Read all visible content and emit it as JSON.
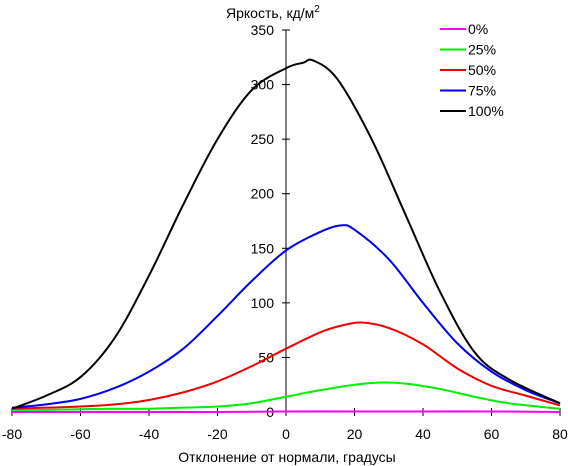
{
  "chart_data": {
    "type": "line",
    "title": "",
    "ylabel": "Яркость, кд/м",
    "ylabel_sup": "2",
    "xlabel": "Отклонение от нормали, градусы",
    "xlim": [
      -80,
      80
    ],
    "ylim": [
      0,
      350
    ],
    "xticks": [
      -80,
      -60,
      -40,
      -20,
      0,
      20,
      40,
      60,
      80
    ],
    "yticks": [
      0,
      50,
      100,
      150,
      200,
      250,
      300,
      350
    ],
    "grid": false,
    "legend_position": "top-right",
    "series": [
      {
        "name": "0%",
        "color": "#ff00ff",
        "x": [
          -80,
          -60,
          -40,
          -20,
          0,
          20,
          40,
          60,
          80
        ],
        "y": [
          0,
          0,
          0,
          0,
          0.5,
          0.5,
          0.5,
          0.5,
          0
        ]
      },
      {
        "name": "25%",
        "color": "#00ee00",
        "x": [
          -80,
          -70,
          -60,
          -50,
          -40,
          -30,
          -20,
          -10,
          0,
          10,
          20,
          28,
          35,
          45,
          55,
          65,
          80
        ],
        "y": [
          2,
          2,
          2.5,
          3,
          3,
          4,
          5,
          8,
          14,
          20,
          25,
          27,
          26,
          21,
          14,
          8,
          3
        ]
      },
      {
        "name": "50%",
        "color": "#ee0000",
        "x": [
          -80,
          -70,
          -60,
          -50,
          -40,
          -30,
          -20,
          -10,
          0,
          10,
          16,
          22,
          30,
          40,
          50,
          60,
          70,
          80
        ],
        "y": [
          3,
          4,
          5,
          7,
          11,
          18,
          28,
          42,
          58,
          73,
          79,
          82,
          77,
          62,
          40,
          24,
          15,
          6
        ]
      },
      {
        "name": "75%",
        "color": "#0000ee",
        "x": [
          -80,
          -70,
          -60,
          -50,
          -40,
          -30,
          -20,
          -10,
          0,
          10,
          16,
          20,
          30,
          40,
          50,
          60,
          70,
          80
        ],
        "y": [
          4,
          7,
          12,
          22,
          37,
          58,
          88,
          120,
          148,
          165,
          171,
          167,
          140,
          100,
          63,
          37,
          20,
          8
        ]
      },
      {
        "name": "100%",
        "color": "#000000",
        "x": [
          -80,
          -70,
          -60,
          -50,
          -40,
          -30,
          -20,
          -10,
          0,
          5,
          8,
          15,
          25,
          35,
          45,
          55,
          65,
          80
        ],
        "y": [
          3,
          15,
          32,
          68,
          125,
          190,
          250,
          295,
          315,
          320,
          322,
          305,
          250,
          180,
          110,
          55,
          30,
          8
        ]
      }
    ]
  }
}
